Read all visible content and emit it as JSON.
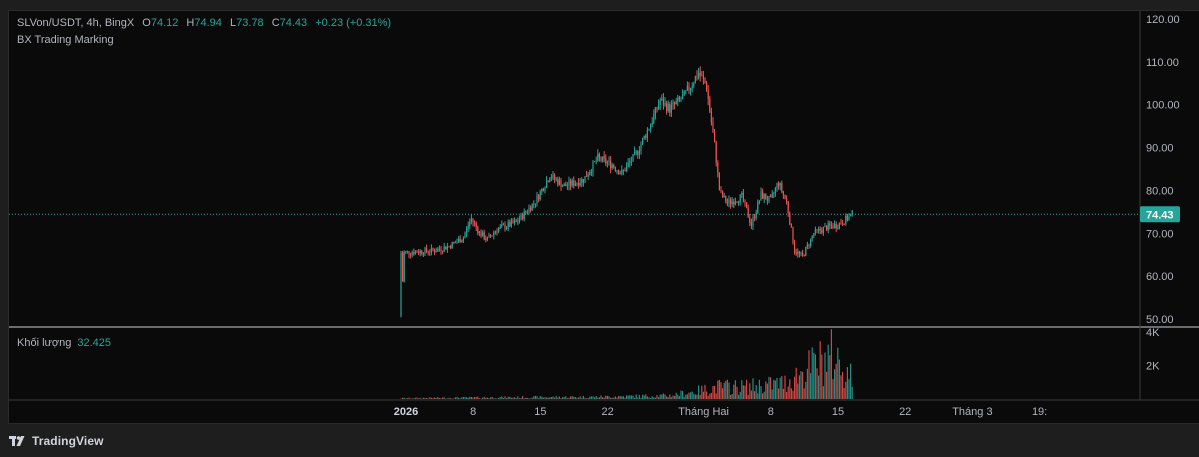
{
  "legend": {
    "symbol": "SLVon/USDT, 4h, BingX",
    "open_label": "O",
    "open": "74.12",
    "high_label": "H",
    "high": "74.94",
    "low_label": "L",
    "low": "73.78",
    "close_label": "C",
    "close": "74.43",
    "change": "+0.23 (+0.31%)",
    "indicator": "BX Trading Marking"
  },
  "volume_legend": {
    "label": "Khối lượng",
    "value": "32.425"
  },
  "footer": {
    "brand": "TradingView"
  },
  "colors": {
    "up": "#26a69a",
    "down": "#ef5350",
    "bg": "#0a0a0a",
    "frame": "#1e1e1e",
    "text": "#b2b5be"
  },
  "chart_data": {
    "type": "candlestick",
    "title": "SLVon/USDT, 4h, BingX",
    "price_axis": {
      "ticks": [
        "120.00",
        "110.00",
        "100.00",
        "90.00",
        "80.00",
        "70.00",
        "60.00",
        "50.00"
      ],
      "ylim": [
        50,
        120
      ]
    },
    "last_price": "74.43",
    "volume_axis": {
      "ticks": [
        "4K",
        "2K"
      ],
      "ylim": [
        0,
        4000
      ]
    },
    "time_axis": {
      "labels": [
        "2026",
        "8",
        "15",
        "22",
        "Tháng Hai",
        "8",
        "15",
        "22",
        "Tháng 3",
        "19:"
      ],
      "bold": [
        "2026"
      ]
    },
    "keypoints": [
      {
        "d": 0.0,
        "p": 50.5
      },
      {
        "d": 0.3,
        "p": 65.5
      },
      {
        "d": 3.5,
        "p": 66.0
      },
      {
        "d": 5.0,
        "p": 67.0
      },
      {
        "d": 6.5,
        "p": 69.0
      },
      {
        "d": 7.3,
        "p": 73.5
      },
      {
        "d": 8.2,
        "p": 70.0
      },
      {
        "d": 9.0,
        "p": 68.5
      },
      {
        "d": 10.0,
        "p": 71.0
      },
      {
        "d": 12.0,
        "p": 72.5
      },
      {
        "d": 14.0,
        "p": 77.5
      },
      {
        "d": 15.5,
        "p": 83.5
      },
      {
        "d": 17.0,
        "p": 81.0
      },
      {
        "d": 19.0,
        "p": 82.5
      },
      {
        "d": 20.5,
        "p": 87.5
      },
      {
        "d": 22.0,
        "p": 86.0
      },
      {
        "d": 23.0,
        "p": 84.0
      },
      {
        "d": 24.5,
        "p": 88.5
      },
      {
        "d": 26.0,
        "p": 95.5
      },
      {
        "d": 27.0,
        "p": 101.0
      },
      {
        "d": 28.0,
        "p": 99.0
      },
      {
        "d": 29.5,
        "p": 102.0
      },
      {
        "d": 31.0,
        "p": 107.5
      },
      {
        "d": 31.8,
        "p": 104.5
      },
      {
        "d": 32.7,
        "p": 90.0
      },
      {
        "d": 33.2,
        "p": 79.5
      },
      {
        "d": 34.0,
        "p": 77.0
      },
      {
        "d": 35.5,
        "p": 78.5
      },
      {
        "d": 36.5,
        "p": 72.0
      },
      {
        "d": 37.5,
        "p": 79.0
      },
      {
        "d": 38.5,
        "p": 77.5
      },
      {
        "d": 39.3,
        "p": 82.0
      },
      {
        "d": 40.2,
        "p": 77.0
      },
      {
        "d": 41.0,
        "p": 66.0
      },
      {
        "d": 41.8,
        "p": 64.5
      },
      {
        "d": 43.0,
        "p": 70.0
      },
      {
        "d": 44.5,
        "p": 71.5
      },
      {
        "d": 45.5,
        "p": 72.0
      },
      {
        "d": 46.5,
        "p": 73.5
      },
      {
        "d": 47.0,
        "p": 74.43
      }
    ],
    "volume_profile": [
      {
        "d": 0,
        "v": 60
      },
      {
        "d": 10,
        "v": 120
      },
      {
        "d": 20,
        "v": 160
      },
      {
        "d": 28,
        "v": 260
      },
      {
        "d": 31,
        "v": 600
      },
      {
        "d": 33,
        "v": 900
      },
      {
        "d": 36,
        "v": 900
      },
      {
        "d": 40,
        "v": 1200
      },
      {
        "d": 43,
        "v": 2500
      },
      {
        "d": 45,
        "v": 3200
      },
      {
        "d": 47,
        "v": 1600
      }
    ]
  }
}
